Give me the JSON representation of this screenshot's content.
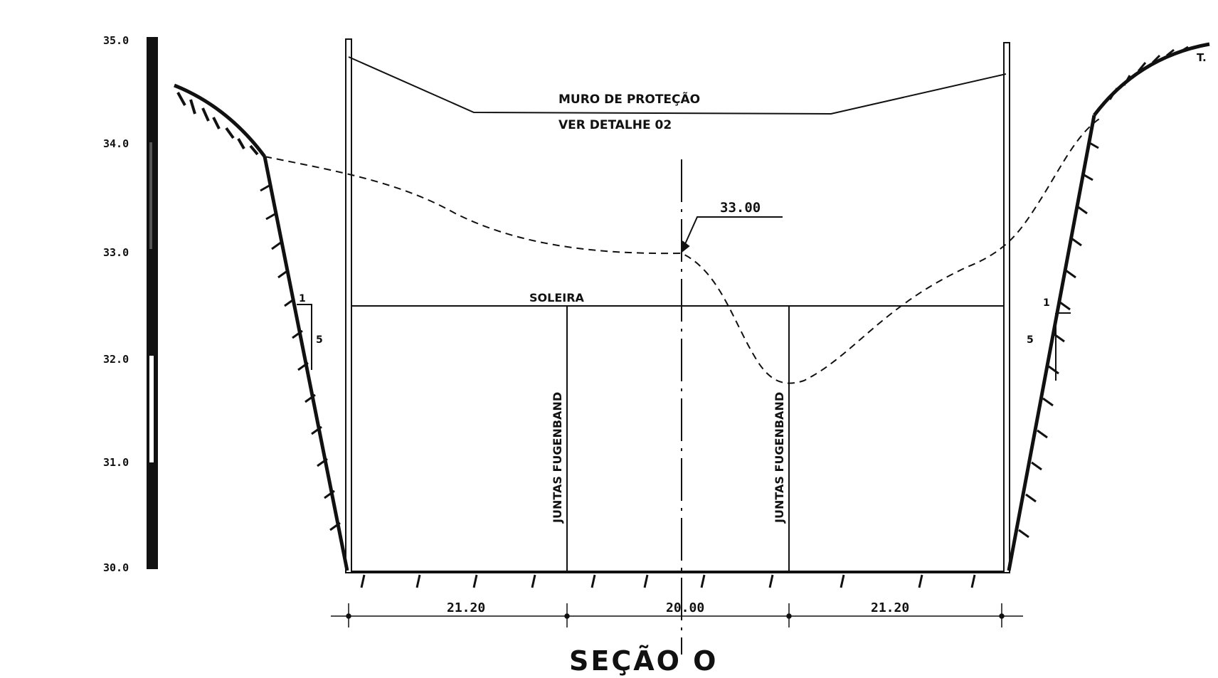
{
  "drawing": {
    "scale_labels": [
      "35.0",
      "34.0",
      "33.0",
      "32.0",
      "31.0",
      "30.0"
    ],
    "corner_label": "T.",
    "muro_line1": "MURO DE PROTEÇÃO",
    "muro_line2": "VER DETALHE 02",
    "level_label": "33.00",
    "soleira_label": "SOLEIRA",
    "joint_label": "JUNTAS FUGENBAND",
    "slope_left_rise": "1",
    "slope_left_run": "5",
    "slope_right_rise": "1",
    "slope_right_run": "5",
    "dims": [
      "21.20",
      "20.00",
      "21.20"
    ],
    "section_title": "SEÇÃO  O"
  }
}
